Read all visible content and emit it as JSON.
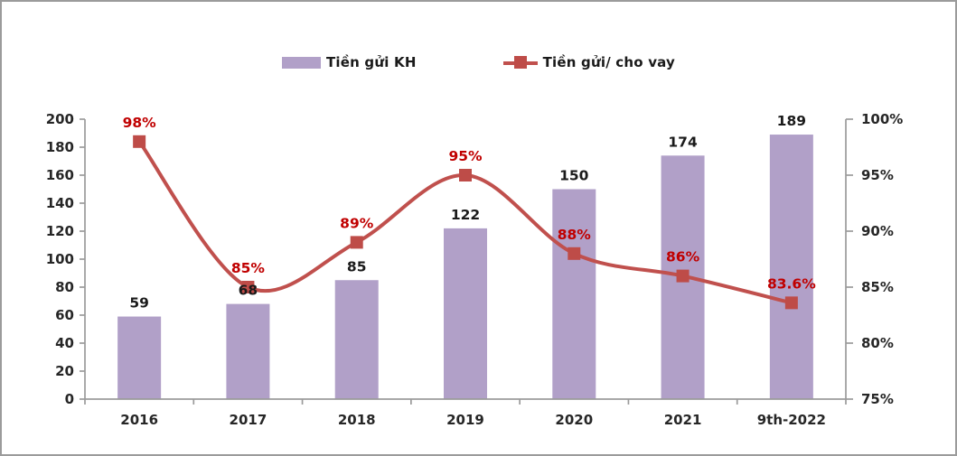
{
  "chart_data": {
    "type": "combo",
    "title": "",
    "categories": [
      "2016",
      "2017",
      "2018",
      "2019",
      "2020",
      "2021",
      "9th-2022"
    ],
    "series": [
      {
        "name": "Tiền gửi KH",
        "type": "bar",
        "axis": "left",
        "values": [
          59,
          68,
          85,
          122,
          150,
          174,
          189
        ],
        "data_labels": [
          "59",
          "68",
          "85",
          "122",
          "150",
          "174",
          "189"
        ],
        "color": "#b1a0c8",
        "label_color": "#1a1a1a"
      },
      {
        "name": "Tiền gửi/ cho vay",
        "type": "line",
        "axis": "right",
        "values": [
          98,
          85,
          89,
          95,
          88,
          86,
          83.6
        ],
        "data_labels": [
          "98%",
          "85%",
          "89%",
          "95%",
          "88%",
          "86%",
          "83.6%"
        ],
        "color": "#c0504d",
        "marker": "square",
        "marker_color": "#be4c48",
        "label_color": "#c00000",
        "smooth": true
      }
    ],
    "left_axis": {
      "min": 0,
      "max": 200,
      "step": 20,
      "tick_labels": [
        "0",
        "20",
        "40",
        "60",
        "80",
        "100",
        "120",
        "140",
        "160",
        "180",
        "200"
      ]
    },
    "right_axis": {
      "min": 75,
      "max": 100,
      "step": 5,
      "tick_labels": [
        "75%",
        "80%",
        "85%",
        "90%",
        "95%",
        "100%"
      ]
    },
    "legend_position": "top",
    "grid": false,
    "axis_color": "#9b9b9b",
    "tick_label_color": "#262626",
    "background": "#ffffff",
    "frame_border_color": "#9b9b9b"
  }
}
